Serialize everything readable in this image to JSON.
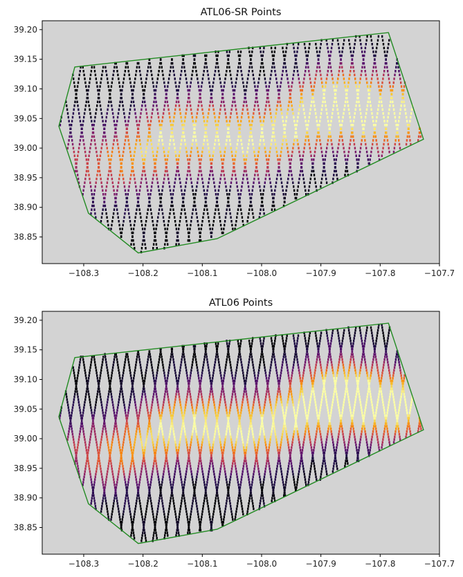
{
  "chart_data": [
    {
      "type": "scatter",
      "title": "ATL06-SR Points",
      "xlabel": "",
      "ylabel": "",
      "xlim": [
        -108.37,
        -107.7
      ],
      "ylim": [
        38.805,
        39.215
      ],
      "xticks": [
        -108.3,
        -108.2,
        -108.1,
        -108.0,
        -107.9,
        -107.8,
        -107.7
      ],
      "xtick_labels": [
        "−108.3",
        "−108.2",
        "−108.1",
        "−108.0",
        "−107.9",
        "−107.8",
        "−107.7"
      ],
      "yticks": [
        38.85,
        38.9,
        38.95,
        39.0,
        39.05,
        39.1,
        39.15,
        39.2
      ],
      "ytick_labels": [
        "38.85",
        "38.90",
        "38.95",
        "39.00",
        "39.05",
        "39.10",
        "39.15",
        "39.20"
      ],
      "background_color": "#d3d3d3",
      "colormap": "inferno",
      "boundary_color": "#228b22",
      "boundary_polygon": [
        [
          -108.315,
          39.137
        ],
        [
          -107.786,
          39.195
        ],
        [
          -107.727,
          39.015
        ],
        [
          -108.075,
          38.847
        ],
        [
          -108.208,
          38.823
        ],
        [
          -108.292,
          38.89
        ],
        [
          -108.342,
          39.037
        ],
        [
          -108.315,
          39.137
        ]
      ],
      "track_sample_spacing_deg": 0.0065
    },
    {
      "type": "scatter",
      "title": "ATL06 Points",
      "xlabel": "",
      "ylabel": "",
      "xlim": [
        -108.37,
        -107.7
      ],
      "ylim": [
        38.805,
        39.215
      ],
      "xticks": [
        -108.3,
        -108.2,
        -108.1,
        -108.0,
        -107.9,
        -107.8,
        -107.7
      ],
      "xtick_labels": [
        "−108.3",
        "−108.2",
        "−108.1",
        "−108.0",
        "−107.9",
        "−107.8",
        "−107.7"
      ],
      "yticks": [
        38.85,
        38.9,
        38.95,
        39.0,
        39.05,
        39.1,
        39.15,
        39.2
      ],
      "ytick_labels": [
        "38.85",
        "38.90",
        "38.95",
        "39.00",
        "39.05",
        "39.10",
        "39.15",
        "39.20"
      ],
      "background_color": "#d3d3d3",
      "colormap": "inferno",
      "boundary_color": "#228b22",
      "boundary_polygon": [
        [
          -108.315,
          39.137
        ],
        [
          -107.786,
          39.195
        ],
        [
          -107.727,
          39.015
        ],
        [
          -108.075,
          38.847
        ],
        [
          -108.208,
          38.823
        ],
        [
          -108.292,
          38.89
        ],
        [
          -108.342,
          39.037
        ],
        [
          -108.315,
          39.137
        ]
      ],
      "track_sample_spacing_deg": 0.0045
    }
  ]
}
